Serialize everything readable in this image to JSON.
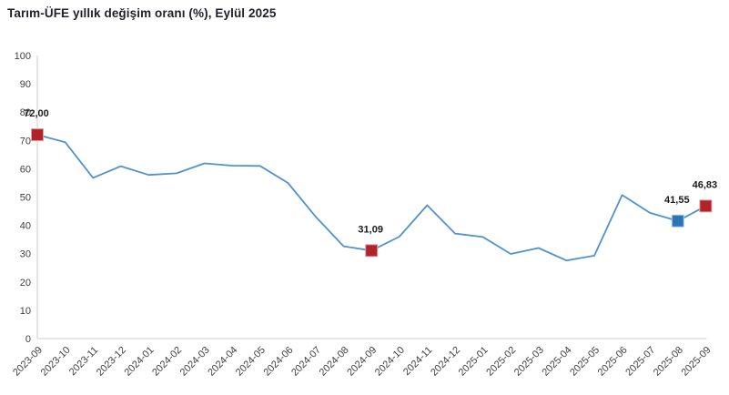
{
  "title": "Tarım-ÜFE yıllık değişim oranı (%), Eylül 2025",
  "colors": {
    "line": "#4f93ce",
    "marker_red": "#b02329",
    "marker_red_border": "#d9a0a4",
    "marker_blue": "#2e75b6",
    "marker_blue_border": "#a9cced",
    "axis": "#d9d9d9",
    "tick_text": "#404040",
    "title_text": "#1f1f2b",
    "label_text": "#1a1a1a"
  },
  "chart_data": {
    "type": "line",
    "title": "Tarım-ÜFE yıllık değişim oranı (%), Eylül 2025",
    "xlabel": "",
    "ylabel": "",
    "ylim": [
      0,
      100
    ],
    "ytick_step": 10,
    "grid": false,
    "legend": "none",
    "categories": [
      "2023-09",
      "2023-10",
      "2023-11",
      "2023-12",
      "2024-01",
      "2024-02",
      "2024-03",
      "2024-04",
      "2024-05",
      "2024-06",
      "2024-07",
      "2024-08",
      "2024-09",
      "2024-10",
      "2024-11",
      "2024-12",
      "2025-01",
      "2025-02",
      "2025-03",
      "2025-04",
      "2025-05",
      "2025-06",
      "2025-07",
      "2025-08",
      "2025-09"
    ],
    "values": [
      72.0,
      69.4,
      56.8,
      60.9,
      57.8,
      58.4,
      61.9,
      61.1,
      61.0,
      55.0,
      43.0,
      32.6,
      31.09,
      36.0,
      47.1,
      37.1,
      35.9,
      29.9,
      32.0,
      27.6,
      29.3,
      50.7,
      44.4,
      41.55,
      46.83
    ],
    "annotations": [
      {
        "index": 0,
        "text": "72,00",
        "marker": "red"
      },
      {
        "index": 12,
        "text": "31,09",
        "marker": "red"
      },
      {
        "index": 23,
        "text": "41,55",
        "marker": "blue"
      },
      {
        "index": 24,
        "text": "46,83",
        "marker": "red"
      }
    ]
  }
}
